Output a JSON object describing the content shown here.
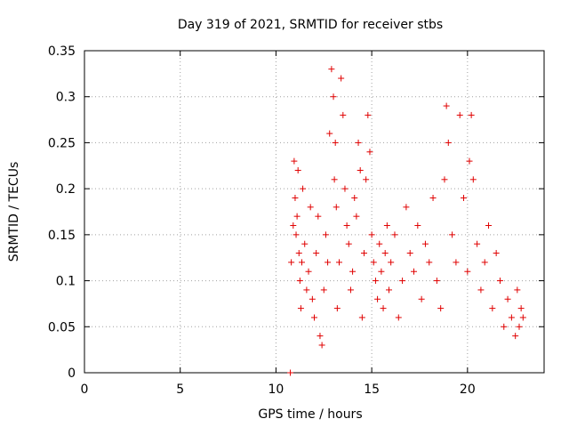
{
  "chart_data": {
    "type": "scatter",
    "title": "Day 319 of 2021, SRMTID for receiver stbs",
    "xlabel": "GPS time / hours",
    "ylabel": "SRMTID / TECUs",
    "xlim": [
      0,
      24
    ],
    "ylim": [
      0,
      0.35
    ],
    "xticks": [
      0,
      5,
      10,
      15,
      20
    ],
    "xtick_labels": [
      "0",
      "5",
      "10",
      "15",
      "20"
    ],
    "yticks": [
      0,
      0.05,
      0.1,
      0.15,
      0.2,
      0.25,
      0.3,
      0.35
    ],
    "ytick_labels": [
      "0",
      "0.05",
      "0.1",
      "0.15",
      "0.2",
      "0.25",
      "0.3",
      "0.35"
    ],
    "grid": true,
    "marker": "plus",
    "color": "#e00000",
    "series": [
      {
        "name": "SRMTID",
        "points": [
          [
            10.75,
            0.0
          ],
          [
            10.8,
            0.12
          ],
          [
            10.9,
            0.16
          ],
          [
            10.95,
            0.23
          ],
          [
            11.0,
            0.19
          ],
          [
            11.05,
            0.15
          ],
          [
            11.1,
            0.17
          ],
          [
            11.15,
            0.22
          ],
          [
            11.2,
            0.13
          ],
          [
            11.25,
            0.1
          ],
          [
            11.3,
            0.07
          ],
          [
            11.35,
            0.12
          ],
          [
            11.4,
            0.2
          ],
          [
            11.5,
            0.14
          ],
          [
            11.6,
            0.09
          ],
          [
            11.7,
            0.11
          ],
          [
            11.8,
            0.18
          ],
          [
            11.9,
            0.08
          ],
          [
            12.0,
            0.06
          ],
          [
            12.1,
            0.13
          ],
          [
            12.2,
            0.17
          ],
          [
            12.3,
            0.04
          ],
          [
            12.4,
            0.03
          ],
          [
            12.5,
            0.09
          ],
          [
            12.6,
            0.15
          ],
          [
            12.7,
            0.12
          ],
          [
            12.8,
            0.26
          ],
          [
            12.9,
            0.33
          ],
          [
            13.0,
            0.3
          ],
          [
            13.05,
            0.21
          ],
          [
            13.1,
            0.25
          ],
          [
            13.15,
            0.18
          ],
          [
            13.2,
            0.07
          ],
          [
            13.3,
            0.12
          ],
          [
            13.4,
            0.32
          ],
          [
            13.5,
            0.28
          ],
          [
            13.6,
            0.2
          ],
          [
            13.7,
            0.16
          ],
          [
            13.8,
            0.14
          ],
          [
            13.9,
            0.09
          ],
          [
            14.0,
            0.11
          ],
          [
            14.1,
            0.19
          ],
          [
            14.2,
            0.17
          ],
          [
            14.3,
            0.25
          ],
          [
            14.4,
            0.22
          ],
          [
            14.5,
            0.06
          ],
          [
            14.6,
            0.13
          ],
          [
            14.7,
            0.21
          ],
          [
            14.8,
            0.28
          ],
          [
            14.9,
            0.24
          ],
          [
            15.0,
            0.15
          ],
          [
            15.1,
            0.12
          ],
          [
            15.2,
            0.1
          ],
          [
            15.3,
            0.08
          ],
          [
            15.4,
            0.14
          ],
          [
            15.5,
            0.11
          ],
          [
            15.6,
            0.07
          ],
          [
            15.7,
            0.13
          ],
          [
            15.8,
            0.16
          ],
          [
            15.9,
            0.09
          ],
          [
            16.0,
            0.12
          ],
          [
            16.2,
            0.15
          ],
          [
            16.4,
            0.06
          ],
          [
            16.6,
            0.1
          ],
          [
            16.8,
            0.18
          ],
          [
            17.0,
            0.13
          ],
          [
            17.2,
            0.11
          ],
          [
            17.4,
            0.16
          ],
          [
            17.6,
            0.08
          ],
          [
            17.8,
            0.14
          ],
          [
            18.0,
            0.12
          ],
          [
            18.2,
            0.19
          ],
          [
            18.4,
            0.1
          ],
          [
            18.6,
            0.07
          ],
          [
            18.8,
            0.21
          ],
          [
            18.9,
            0.29
          ],
          [
            19.0,
            0.25
          ],
          [
            19.2,
            0.15
          ],
          [
            19.4,
            0.12
          ],
          [
            19.6,
            0.28
          ],
          [
            19.8,
            0.19
          ],
          [
            20.0,
            0.11
          ],
          [
            20.1,
            0.23
          ],
          [
            20.2,
            0.28
          ],
          [
            20.3,
            0.21
          ],
          [
            20.5,
            0.14
          ],
          [
            20.7,
            0.09
          ],
          [
            20.9,
            0.12
          ],
          [
            21.1,
            0.16
          ],
          [
            21.3,
            0.07
          ],
          [
            21.5,
            0.13
          ],
          [
            21.7,
            0.1
          ],
          [
            21.9,
            0.05
          ],
          [
            22.1,
            0.08
          ],
          [
            22.3,
            0.06
          ],
          [
            22.5,
            0.04
          ],
          [
            22.6,
            0.09
          ],
          [
            22.7,
            0.05
          ],
          [
            22.8,
            0.07
          ],
          [
            22.9,
            0.06
          ]
        ]
      }
    ]
  }
}
